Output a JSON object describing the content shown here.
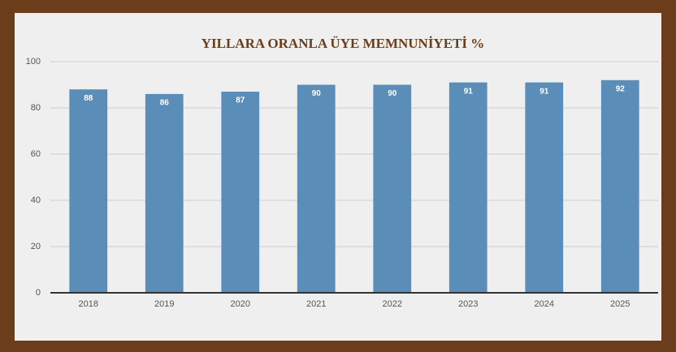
{
  "chart_data": {
    "type": "bar",
    "title": "YILLARA ORANLA ÜYE MEMNUNİYETİ %",
    "categories": [
      "2018",
      "2019",
      "2020",
      "2021",
      "2022",
      "2023",
      "2024",
      "2025"
    ],
    "values": [
      88,
      86,
      87,
      90,
      90,
      91,
      91,
      92
    ],
    "color": "#5b8db9",
    "ylim": [
      0,
      100
    ],
    "yticks": [
      0,
      20,
      40,
      60,
      80,
      100
    ],
    "grid": true
  }
}
